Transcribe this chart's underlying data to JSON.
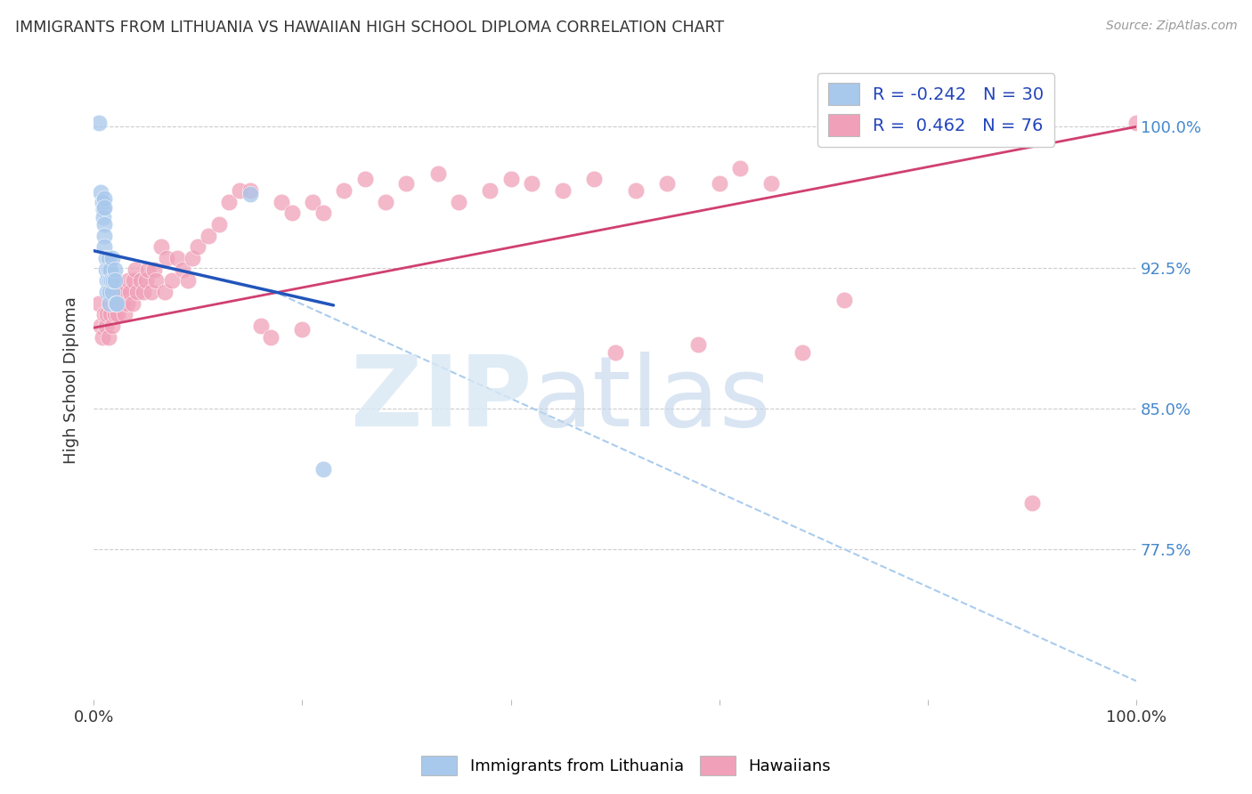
{
  "title": "IMMIGRANTS FROM LITHUANIA VS HAWAIIAN HIGH SCHOOL DIPLOMA CORRELATION CHART",
  "source": "Source: ZipAtlas.com",
  "ylabel": "High School Diploma",
  "yticks": [
    0.775,
    0.85,
    0.925,
    1.0
  ],
  "ytick_labels": [
    "77.5%",
    "85.0%",
    "92.5%",
    "100.0%"
  ],
  "ylim": [
    0.695,
    1.035
  ],
  "xlim": [
    0.0,
    1.0
  ],
  "blue_color": "#A8C8EC",
  "pink_color": "#F0A0B8",
  "blue_line_color": "#2255BB",
  "pink_line_color": "#D04070",
  "dash_color": "#AACCEE",
  "blue_line_x0": 0.0,
  "blue_line_y0": 0.934,
  "blue_line_x1": 0.23,
  "blue_line_y1": 0.905,
  "pink_line_x0": 0.0,
  "pink_line_y0": 0.893,
  "pink_line_x1": 1.0,
  "pink_line_y1": 1.0,
  "dash_line_x0": 0.17,
  "dash_line_y0": 0.913,
  "dash_line_x1": 1.0,
  "dash_line_y1": 0.705,
  "blue_dots_x": [
    0.005,
    0.007,
    0.008,
    0.009,
    0.009,
    0.01,
    0.01,
    0.01,
    0.01,
    0.01,
    0.012,
    0.012,
    0.013,
    0.013,
    0.014,
    0.014,
    0.015,
    0.015,
    0.015,
    0.016,
    0.017,
    0.018,
    0.018,
    0.019,
    0.02,
    0.02,
    0.021,
    0.022,
    0.15,
    0.22
  ],
  "blue_dots_y": [
    1.002,
    0.965,
    0.96,
    0.956,
    0.952,
    0.962,
    0.957,
    0.948,
    0.942,
    0.936,
    0.93,
    0.924,
    0.918,
    0.912,
    0.93,
    0.924,
    0.918,
    0.912,
    0.906,
    0.924,
    0.918,
    0.912,
    0.93,
    0.918,
    0.924,
    0.918,
    0.906,
    0.906,
    0.964,
    0.818
  ],
  "pink_dots_x": [
    0.005,
    0.007,
    0.008,
    0.01,
    0.012,
    0.013,
    0.014,
    0.015,
    0.016,
    0.018,
    0.019,
    0.02,
    0.021,
    0.022,
    0.023,
    0.025,
    0.027,
    0.028,
    0.03,
    0.032,
    0.033,
    0.035,
    0.037,
    0.038,
    0.04,
    0.042,
    0.045,
    0.048,
    0.05,
    0.052,
    0.055,
    0.058,
    0.06,
    0.065,
    0.068,
    0.07,
    0.075,
    0.08,
    0.085,
    0.09,
    0.095,
    0.1,
    0.11,
    0.12,
    0.13,
    0.14,
    0.15,
    0.16,
    0.17,
    0.18,
    0.19,
    0.2,
    0.21,
    0.22,
    0.24,
    0.26,
    0.28,
    0.3,
    0.33,
    0.35,
    0.38,
    0.4,
    0.42,
    0.45,
    0.48,
    0.5,
    0.52,
    0.55,
    0.58,
    0.6,
    0.62,
    0.65,
    0.68,
    0.72,
    0.9,
    1.0
  ],
  "pink_dots_y": [
    0.906,
    0.894,
    0.888,
    0.9,
    0.894,
    0.9,
    0.888,
    0.906,
    0.9,
    0.894,
    0.906,
    0.9,
    0.918,
    0.906,
    0.9,
    0.912,
    0.906,
    0.912,
    0.9,
    0.906,
    0.918,
    0.912,
    0.906,
    0.918,
    0.924,
    0.912,
    0.918,
    0.912,
    0.918,
    0.924,
    0.912,
    0.924,
    0.918,
    0.936,
    0.912,
    0.93,
    0.918,
    0.93,
    0.924,
    0.918,
    0.93,
    0.936,
    0.942,
    0.948,
    0.96,
    0.966,
    0.966,
    0.894,
    0.888,
    0.96,
    0.954,
    0.892,
    0.96,
    0.954,
    0.966,
    0.972,
    0.96,
    0.97,
    0.975,
    0.96,
    0.966,
    0.972,
    0.97,
    0.966,
    0.972,
    0.88,
    0.966,
    0.97,
    0.884,
    0.97,
    0.978,
    0.97,
    0.88,
    0.908,
    0.8,
    1.002
  ]
}
